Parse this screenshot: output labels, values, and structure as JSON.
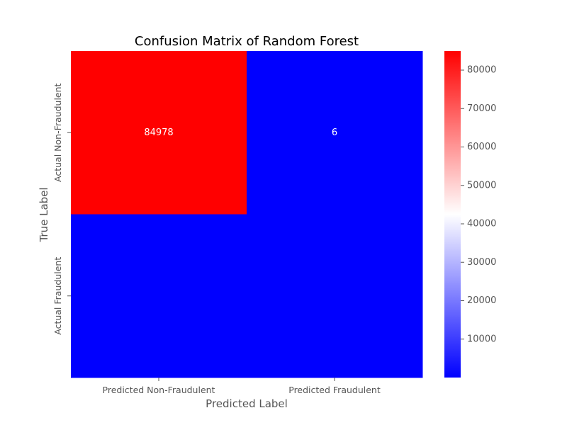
{
  "chart_data": {
    "type": "heatmap",
    "title": "Confusion Matrix of Random Forest",
    "xlabel": "Predicted Label",
    "ylabel": "True Label",
    "x_categories": [
      "Predicted Non-Fraudulent",
      "Predicted Fraudulent"
    ],
    "y_categories": [
      "Actual Non-Fraudulent",
      "Actual Fraudulent"
    ],
    "values": [
      [
        84978,
        6
      ],
      [
        null,
        null
      ]
    ],
    "cell_labels": [
      [
        "84978",
        "6"
      ],
      [
        "",
        ""
      ]
    ],
    "colormap": {
      "name": "bwr",
      "low": "#0000ff",
      "mid": "#ffffff",
      "high": "#ff0000"
    },
    "colorbar": {
      "vmin": 0,
      "vmax": 84978,
      "ticks": [
        10000,
        20000,
        30000,
        40000,
        50000,
        60000,
        70000,
        80000
      ],
      "tick_labels": [
        "10000",
        "20000",
        "30000",
        "40000",
        "50000",
        "60000",
        "70000",
        "80000"
      ]
    },
    "grid": false
  }
}
